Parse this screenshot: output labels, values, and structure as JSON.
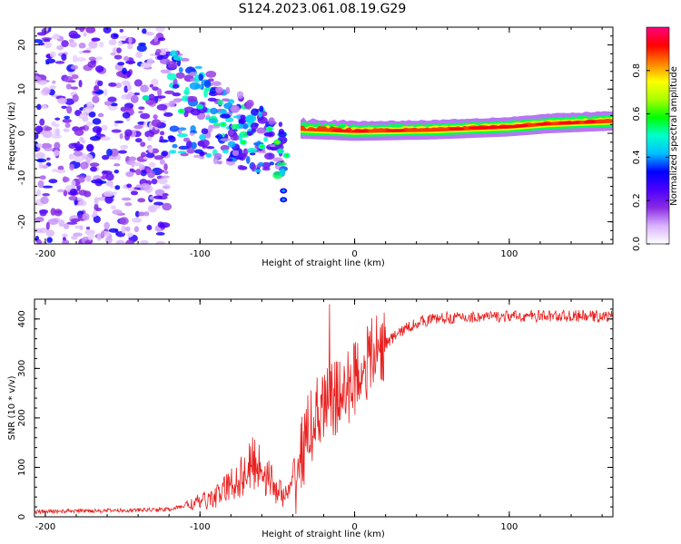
{
  "title": "S124.2023.061.08.19.G29",
  "chart_data": [
    {
      "type": "heatmap",
      "xlabel": "Height of straight line (km)",
      "ylabel": "Frequency (Hz)",
      "xlim": [
        -207,
        167
      ],
      "ylim": [
        -25,
        24
      ],
      "xticks": [
        -200,
        -100,
        0,
        100
      ],
      "yticks": [
        -20,
        -10,
        0,
        10,
        20
      ],
      "colorbar": {
        "label": "Normalized spectral amplitude",
        "range": [
          0,
          1
        ],
        "ticks": [
          "0.0",
          "0.2",
          "0.4",
          "0.6",
          "0.8"
        ],
        "colormap": [
          "#ffffff",
          "#d9b3ff",
          "#8a2be2",
          "#4b00ff",
          "#0000ff",
          "#00bfff",
          "#00ffcc",
          "#00ff00",
          "#aaff00",
          "#ffff00",
          "#ff8000",
          "#ff0000",
          "#ff0080"
        ]
      },
      "ridge": [
        {
          "x": -35,
          "y": 1
        },
        {
          "x": 0,
          "y": 0.5
        },
        {
          "x": 50,
          "y": 0.8
        },
        {
          "x": 100,
          "y": 1.5
        },
        {
          "x": 125,
          "y": 2.2
        },
        {
          "x": 167,
          "y": 2.8
        }
      ],
      "regions": [
        {
          "x_range": [
            -207,
            -120
          ],
          "description_level": "low",
          "amplitude": [
            0.05,
            0.35
          ]
        },
        {
          "x_range": [
            -120,
            -45
          ],
          "description_level": "medium",
          "amplitude": [
            0.1,
            0.55
          ]
        },
        {
          "x_range": [
            -35,
            167
          ],
          "description_level": "high",
          "amplitude": [
            0.6,
            1.0
          ]
        }
      ]
    },
    {
      "type": "line",
      "xlabel": "Height of straight line (km)",
      "ylabel": "SNR (10 * v/v)",
      "xlim": [
        -207,
        167
      ],
      "ylim": [
        0,
        440
      ],
      "xticks": [
        -200,
        -100,
        0,
        100
      ],
      "yticks": [
        0,
        100,
        200,
        300,
        400
      ],
      "series": [
        {
          "color": "#e8201f",
          "x": [
            -207,
            -180,
            -150,
            -120,
            -110,
            -100,
            -90,
            -80,
            -70,
            -65,
            -60,
            -55,
            -50,
            -45,
            -40,
            -35,
            -30,
            -25,
            -20,
            -15,
            -10,
            -5,
            0,
            5,
            10,
            20,
            30,
            40,
            50,
            60,
            80,
            100,
            120,
            140,
            167
          ],
          "y": [
            10,
            12,
            13,
            15,
            22,
            30,
            40,
            65,
            90,
            110,
            100,
            75,
            55,
            40,
            60,
            120,
            170,
            200,
            215,
            235,
            240,
            255,
            285,
            300,
            320,
            350,
            375,
            392,
            400,
            402,
            404,
            405,
            406,
            406,
            405
          ]
        }
      ]
    }
  ]
}
